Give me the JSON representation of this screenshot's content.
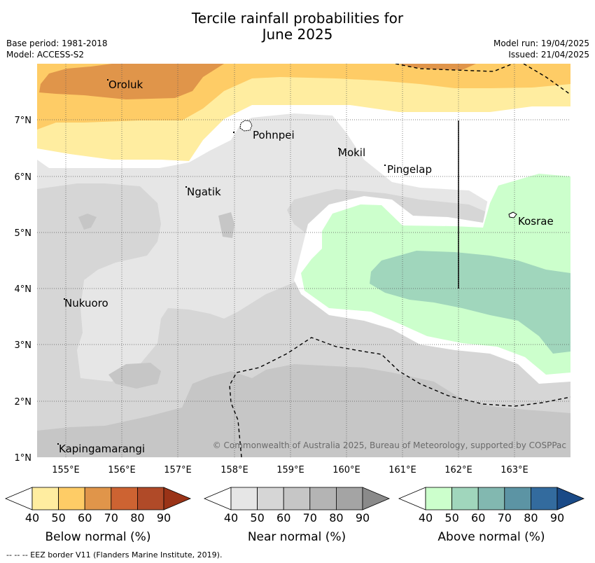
{
  "title_line1": "Tercile rainfall probabilities for",
  "title_line2": "June 2025",
  "base_period": "Base period: 1981-2018",
  "model": "Model: ACCESS-S2",
  "model_run": "Model run: 19/04/2025",
  "issued": "Issued: 21/04/2025",
  "copyright": "© Commonwealth of Australia 2025, Bureau of Meteorology, supported by COSPPac",
  "footnote": "-- -- -- EEZ border V11 (Flanders Marine Institute, 2019).",
  "map": {
    "lon_labels": [
      "155°E",
      "156°E",
      "157°E",
      "158°E",
      "159°E",
      "160°E",
      "161°E",
      "162°E",
      "163°E"
    ],
    "lat_labels": [
      "7°N",
      "6°N",
      "5°N",
      "4°N",
      "3°N",
      "2°N",
      "1°N"
    ],
    "places": [
      {
        "name": "Oroluk"
      },
      {
        "name": "Pohnpei"
      },
      {
        "name": "Mokil"
      },
      {
        "name": "Pingelap"
      },
      {
        "name": "Ngatik"
      },
      {
        "name": "Kosrae"
      },
      {
        "name": "Nukuoro"
      },
      {
        "name": "Kapingamarangi"
      }
    ]
  },
  "legends": [
    {
      "label": "Below normal (%)",
      "ticks": [
        "40",
        "50",
        "60",
        "70",
        "80",
        "90"
      ],
      "colors": [
        "#ffeda0",
        "#fecc66",
        "#e0954a",
        "#cd6332",
        "#b04a28",
        "#9a3317"
      ]
    },
    {
      "label": "Near normal (%)",
      "ticks": [
        "40",
        "50",
        "60",
        "70",
        "80",
        "90"
      ],
      "colors": [
        "#e6e6e6",
        "#d6d6d6",
        "#c6c6c6",
        "#b4b4b4",
        "#a4a4a4",
        "#8a8a8a"
      ]
    },
    {
      "label": "Above normal (%)",
      "ticks": [
        "40",
        "50",
        "60",
        "70",
        "80",
        "90"
      ],
      "colors": [
        "#ccffcc",
        "#a0d6bc",
        "#82b8b0",
        "#5c94a4",
        "#336b9e",
        "#1a4a87"
      ]
    }
  ]
}
